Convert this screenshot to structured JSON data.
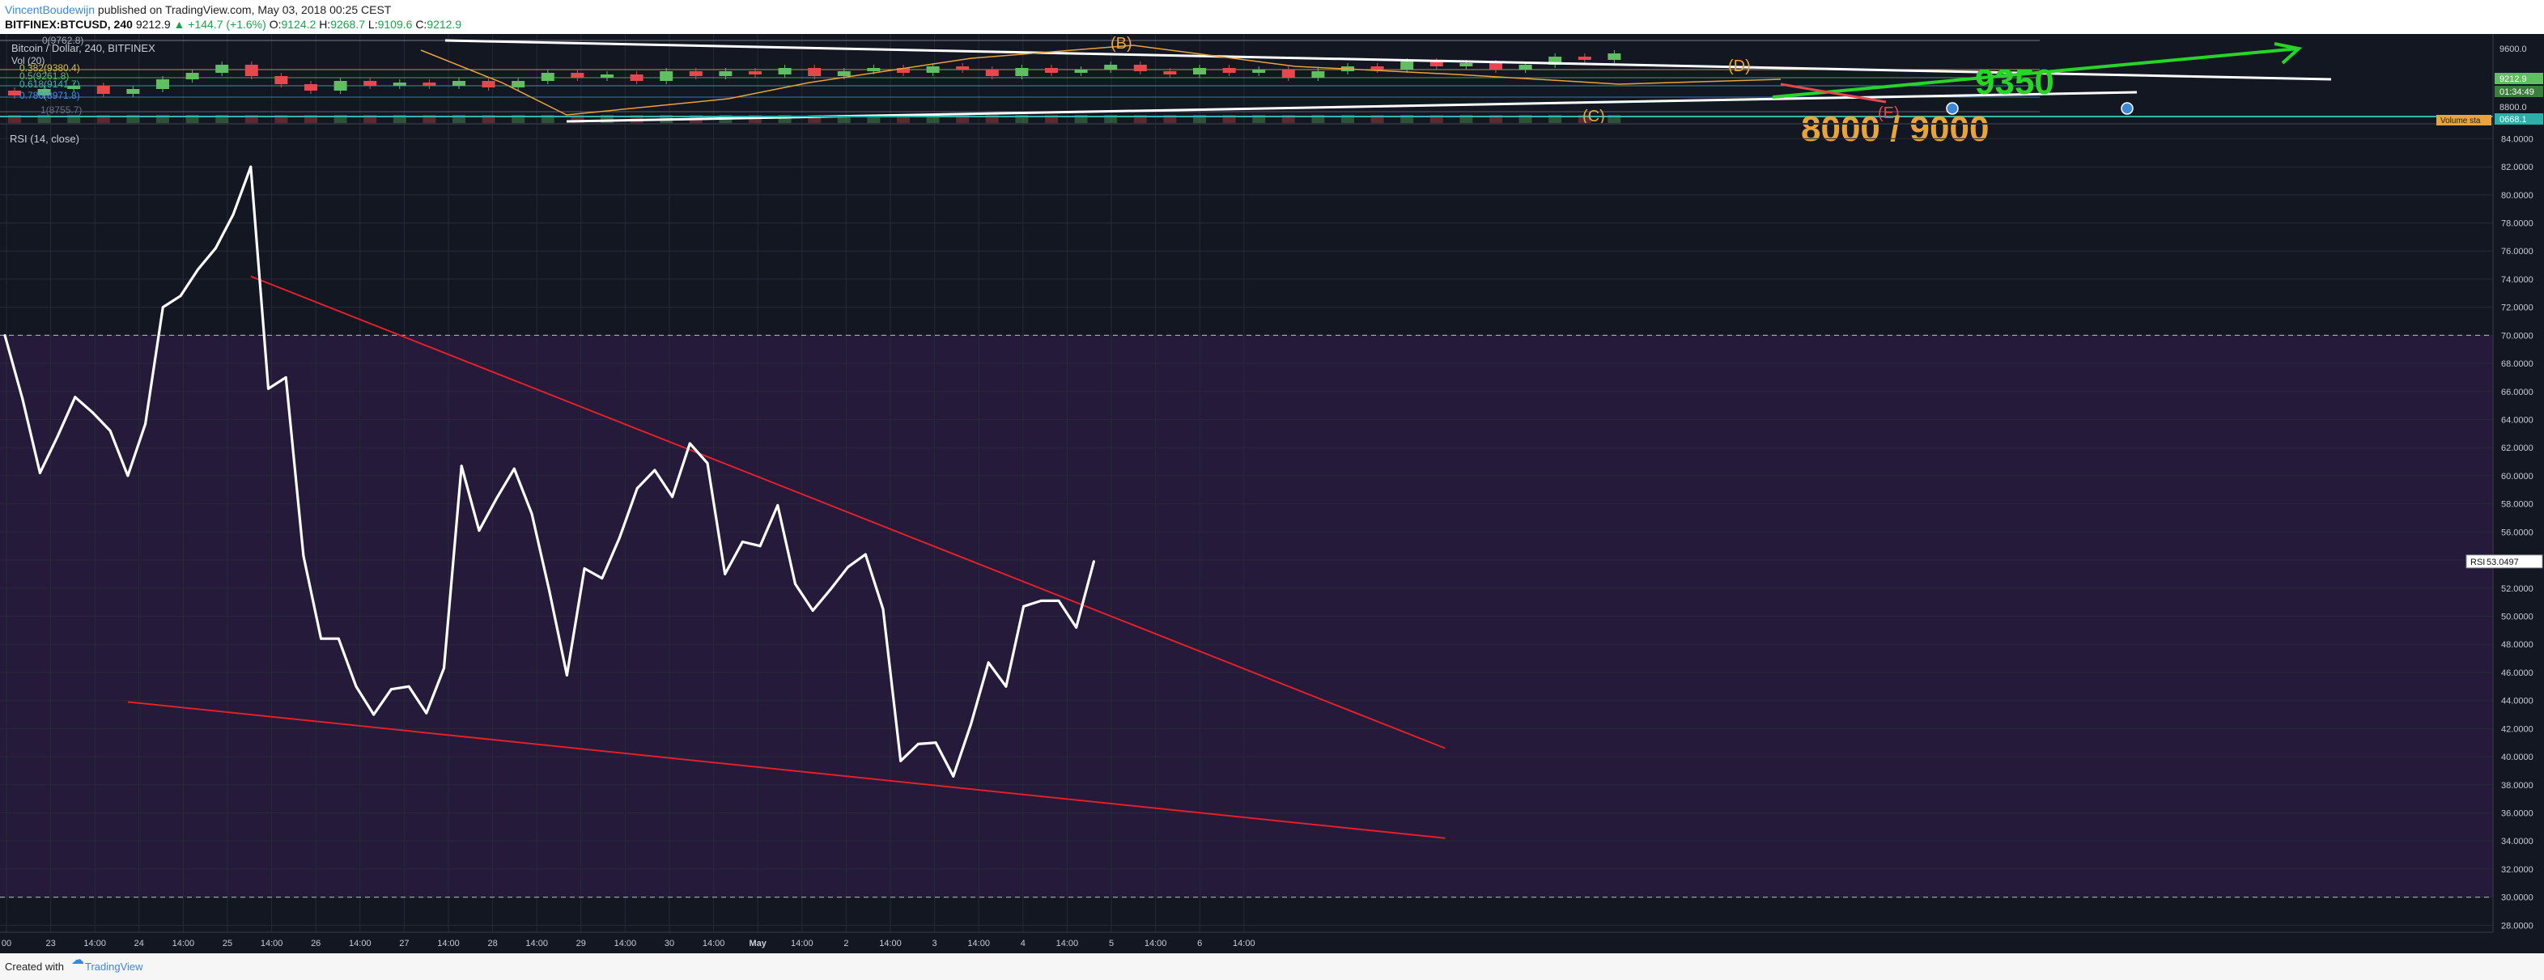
{
  "header": {
    "author": "VincentBoudewijn",
    "published_text": " published on TradingView.com, May 03, 2018 00:25 CEST",
    "symbol": "BITFINEX:BTCUSD, 240",
    "last": "9212.9",
    "change": "▲ +144.7 (+1.6%)",
    "ohlc": [
      {
        "k": "O:",
        "v": "9124.2"
      },
      {
        "k": "H:",
        "v": "9268.7"
      },
      {
        "k": "L:",
        "v": "9109.6"
      },
      {
        "k": "C:",
        "v": "9212.9"
      }
    ]
  },
  "price_pane": {
    "title": "Bitcoin / Dollar, 240, BITFINEX",
    "vol_label": "Vol (20)",
    "fib_labels": [
      "0(9762.8)",
      "0.382(9380.4)",
      "0.5(9261.8)",
      "0.618(9141.7)",
      "0.786(8971.8)",
      "1(8755.7)"
    ],
    "wave_labels": [
      "(B)",
      "(D)",
      "(C)",
      "(E)"
    ],
    "big_labels": [
      "9350",
      "8000 / 9000"
    ],
    "axis_labels": [
      "9600.0",
      "8800.0"
    ],
    "badges": {
      "price": "9212.9",
      "countdown": "01:34:49",
      "volume": "Volume sta",
      "volume_value": "0668.1"
    }
  },
  "rsi_pane": {
    "title": "RSI (14, close)",
    "badge_label": "RSI",
    "badge_value": "53.0497"
  },
  "colors": {
    "background": "#131722",
    "band_fill": "#251a3a",
    "rsi_line": "#ffffff",
    "trendline": "#e0202a",
    "grid": "#262b38",
    "bull": "#5fbf61",
    "bear": "#e5484d",
    "accent_green": "#27d427",
    "wave_orange": "#e8a33a"
  },
  "chart_data": {
    "type": "line",
    "title": "RSI (14, close)",
    "ylim": [
      27.5,
      85.0
    ],
    "y_ticks": [
      "84.0000",
      "82.0000",
      "80.0000",
      "78.0000",
      "76.0000",
      "74.0000",
      "72.0000",
      "70.0000",
      "68.0000",
      "66.0000",
      "64.0000",
      "62.0000",
      "60.0000",
      "58.0000",
      "56.0000",
      "54.0000",
      "52.0000",
      "50.0000",
      "48.0000",
      "46.0000",
      "44.0000",
      "42.0000",
      "40.0000",
      "38.0000",
      "36.0000",
      "34.0000",
      "32.0000",
      "30.0000",
      "28.0000"
    ],
    "x_ticks": [
      "00",
      "23",
      "14:00",
      "24",
      "14:00",
      "25",
      "14:00",
      "26",
      "14:00",
      "27",
      "14:00",
      "28",
      "14:00",
      "29",
      "14:00",
      "30",
      "14:00",
      "May",
      "14:00",
      "2",
      "14:00",
      "3",
      "14:00",
      "4",
      "14:00",
      "5",
      "14:00",
      "6",
      "14:00"
    ],
    "bands": [
      30,
      70
    ],
    "series": [
      {
        "values": [
          70.0,
          65.5,
          60.2,
          62.8,
          65.6,
          64.5,
          63.2,
          60.0,
          63.7,
          72.0,
          72.8,
          74.7,
          76.2,
          78.6,
          82.0,
          66.2,
          67.0,
          54.3,
          48.4,
          48.4,
          45.0,
          43.0,
          44.8,
          45.0,
          43.1,
          46.3,
          60.7,
          56.1,
          58.4,
          60.5,
          57.3,
          51.8,
          45.8,
          53.4,
          52.7,
          55.6,
          59.1,
          60.4,
          58.5,
          62.3,
          60.9,
          53.0,
          55.3,
          55.0,
          57.9,
          52.3,
          50.4,
          51.9,
          53.5,
          54.4,
          50.5,
          39.7,
          40.9,
          41.0,
          38.6,
          42.3,
          46.7,
          45.0,
          50.7,
          51.1,
          51.1,
          49.2,
          53.9
        ]
      }
    ],
    "trendlines": [
      {
        "from": [
          14,
          74.2
        ],
        "to": [
          82,
          40.6
        ]
      },
      {
        "from": [
          7,
          43.9
        ],
        "to": [
          82,
          34.2
        ]
      }
    ]
  }
}
